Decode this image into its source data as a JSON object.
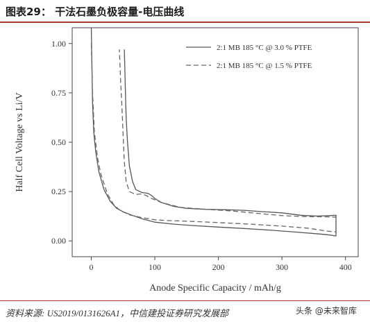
{
  "header": {
    "title": "图表29：  干法石墨负极容量-电压曲线"
  },
  "footer": {
    "source": "资料来源: US2019/0131626A1，中信建投证券研究发展部",
    "watermark": "头条 @未来智库"
  },
  "chart_data": {
    "type": "line",
    "title": "",
    "xlabel": "Anode Specific Capacity / mAh/g",
    "ylabel": "Half Cell Voltage vs Li/V",
    "xlim": [
      -30,
      420
    ],
    "ylim": [
      -0.08,
      1.08
    ],
    "xticks": [
      "0",
      "100",
      "200",
      "300",
      "400"
    ],
    "yticks": [
      "0.00",
      "0.25",
      "0.50",
      "0.75",
      "1.00"
    ],
    "xtick_values": [
      0,
      100,
      200,
      300,
      400
    ],
    "ytick_values": [
      0.0,
      0.25,
      0.5,
      0.75,
      1.0
    ],
    "grid": false,
    "legend_position": "top-right",
    "colors": {
      "solid": "#555555",
      "dashed": "#666666"
    },
    "series": [
      {
        "name": "2:1 MB 185 °C @ 3.0 % PTFE",
        "style": "solid",
        "x": [
          0,
          1,
          2,
          4,
          7,
          12,
          20,
          30,
          40,
          50,
          60,
          80,
          100,
          130,
          160,
          200,
          240,
          280,
          320,
          360,
          375,
          385,
          385,
          375,
          355,
          330,
          300,
          270,
          240,
          210,
          180,
          150,
          130,
          110,
          100,
          95,
          90,
          85,
          80,
          70,
          65,
          60,
          57,
          55,
          54,
          53,
          52
        ],
        "y": [
          1.1,
          0.9,
          0.7,
          0.55,
          0.45,
          0.35,
          0.26,
          0.2,
          0.165,
          0.148,
          0.135,
          0.112,
          0.095,
          0.085,
          0.078,
          0.07,
          0.063,
          0.055,
          0.045,
          0.035,
          0.03,
          0.025,
          0.13,
          0.128,
          0.126,
          0.13,
          0.142,
          0.148,
          0.155,
          0.158,
          0.16,
          0.165,
          0.175,
          0.195,
          0.215,
          0.23,
          0.24,
          0.243,
          0.245,
          0.26,
          0.3,
          0.38,
          0.5,
          0.62,
          0.72,
          0.85,
          0.97
        ]
      },
      {
        "name": "2:1 MB 185 °C @ 1.5 % PTFE",
        "style": "dashed",
        "x": [
          0,
          2,
          5,
          10,
          15,
          25,
          35,
          45,
          60,
          80,
          100,
          120,
          150,
          200,
          250,
          300,
          340,
          370,
          385,
          385,
          370,
          340,
          300,
          260,
          220,
          180,
          140,
          110,
          95,
          85,
          78,
          70,
          60,
          55,
          52,
          50,
          48,
          46,
          45,
          44
        ],
        "y": [
          1.0,
          0.75,
          0.55,
          0.42,
          0.34,
          0.24,
          0.185,
          0.155,
          0.132,
          0.118,
          0.107,
          0.103,
          0.1,
          0.093,
          0.085,
          0.075,
          0.065,
          0.05,
          0.045,
          0.12,
          0.122,
          0.123,
          0.128,
          0.14,
          0.152,
          0.16,
          0.17,
          0.195,
          0.215,
          0.232,
          0.238,
          0.235,
          0.25,
          0.3,
          0.4,
          0.55,
          0.7,
          0.82,
          0.91,
          0.97
        ]
      }
    ]
  }
}
